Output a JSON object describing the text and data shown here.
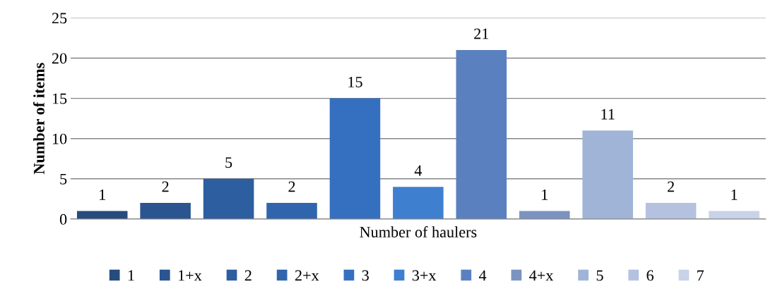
{
  "chart_data": {
    "type": "bar",
    "xlabel": "Number of haulers",
    "ylabel": "Number of items",
    "categories": [
      null
    ],
    "series": [
      {
        "name": "1",
        "color": "#264b7d",
        "values": [
          1
        ]
      },
      {
        "name": "1+x",
        "color": "#2a5590",
        "values": [
          2
        ]
      },
      {
        "name": "2",
        "color": "#2d5ea0",
        "values": [
          5
        ]
      },
      {
        "name": "2+x",
        "color": "#3065ad",
        "values": [
          2
        ]
      },
      {
        "name": "3",
        "color": "#3570c0",
        "values": [
          15
        ]
      },
      {
        "name": "3+x",
        "color": "#3f7fd0",
        "values": [
          4
        ]
      },
      {
        "name": "4",
        "color": "#5a80c0",
        "values": [
          21
        ]
      },
      {
        "name": "4+x",
        "color": "#7b93c0",
        "values": [
          1
        ]
      },
      {
        "name": "5",
        "color": "#a0b4d8",
        "values": [
          11
        ]
      },
      {
        "name": "6",
        "color": "#b4c2e0",
        "values": [
          2
        ]
      },
      {
        "name": "7",
        "color": "#c8d2e8",
        "values": [
          1
        ]
      }
    ],
    "ylim": [
      0,
      25
    ],
    "yticks": [
      0,
      5,
      10,
      15,
      20,
      25
    ],
    "grid": "y",
    "legend": "bottom",
    "data_labels": true
  }
}
